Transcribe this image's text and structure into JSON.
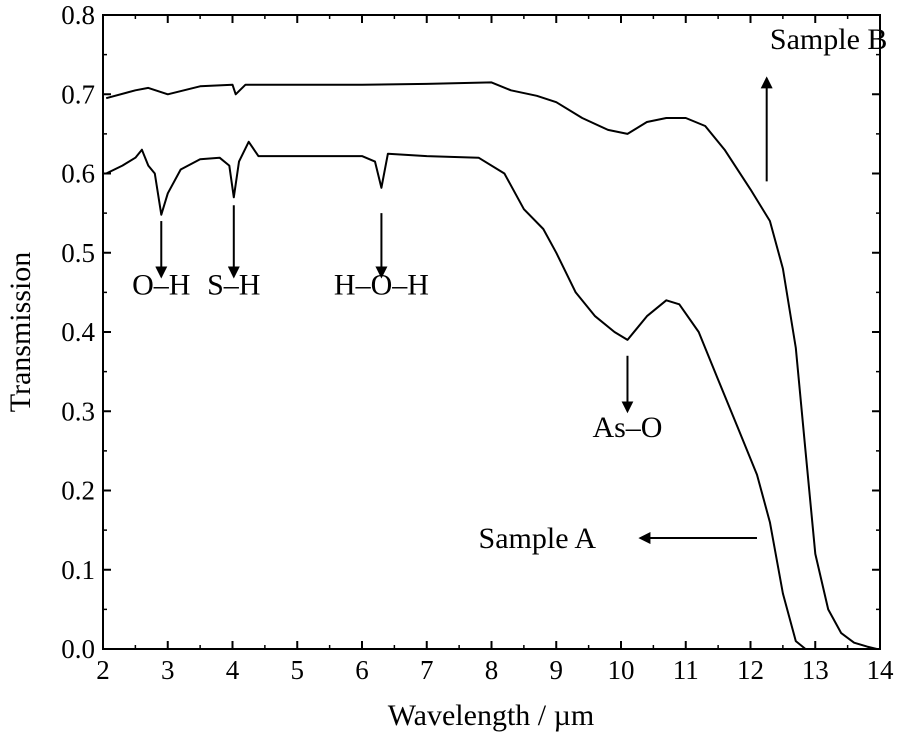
{
  "chart_data": {
    "type": "line",
    "xlabel": "Wavelength / µm",
    "ylabel": "Transmission",
    "xlim": [
      2,
      14
    ],
    "ylim": [
      0,
      0.8
    ],
    "x_ticks": [
      "2",
      "3",
      "4",
      "5",
      "6",
      "7",
      "8",
      "9",
      "10",
      "11",
      "12",
      "13",
      "14"
    ],
    "y_ticks": [
      "0.0",
      "0.1",
      "0.2",
      "0.3",
      "0.4",
      "0.5",
      "0.6",
      "0.7",
      "0.8"
    ],
    "grid": false,
    "series": [
      {
        "name": "Sample A",
        "x": [
          2.05,
          2.3,
          2.5,
          2.6,
          2.7,
          2.8,
          2.9,
          3.0,
          3.2,
          3.5,
          3.8,
          3.95,
          4.02,
          4.1,
          4.25,
          4.4,
          5.0,
          6.0,
          6.2,
          6.3,
          6.4,
          7.0,
          7.8,
          8.2,
          8.5,
          8.8,
          9.0,
          9.3,
          9.6,
          9.9,
          10.1,
          10.4,
          10.7,
          10.9,
          11.2,
          11.5,
          11.8,
          12.1,
          12.3,
          12.5,
          12.7,
          12.85,
          13.0
        ],
        "y": [
          0.6,
          0.61,
          0.62,
          0.63,
          0.61,
          0.6,
          0.548,
          0.575,
          0.605,
          0.618,
          0.62,
          0.61,
          0.57,
          0.615,
          0.64,
          0.622,
          0.622,
          0.622,
          0.615,
          0.582,
          0.625,
          0.622,
          0.62,
          0.6,
          0.555,
          0.53,
          0.5,
          0.45,
          0.42,
          0.4,
          0.39,
          0.42,
          0.44,
          0.435,
          0.4,
          0.34,
          0.28,
          0.22,
          0.16,
          0.07,
          0.01,
          0.0,
          0.0
        ]
      },
      {
        "name": "Sample B",
        "x": [
          2.05,
          2.5,
          2.7,
          3.0,
          3.5,
          4.0,
          4.05,
          4.2,
          5.0,
          6.0,
          7.0,
          8.0,
          8.3,
          8.7,
          9.0,
          9.4,
          9.8,
          10.1,
          10.4,
          10.7,
          11.0,
          11.3,
          11.6,
          12.0,
          12.3,
          12.5,
          12.7,
          12.85,
          13.0,
          13.2,
          13.4,
          13.6,
          13.8,
          13.95
        ],
        "y": [
          0.695,
          0.705,
          0.708,
          0.7,
          0.71,
          0.712,
          0.7,
          0.712,
          0.712,
          0.712,
          0.713,
          0.715,
          0.705,
          0.698,
          0.69,
          0.67,
          0.655,
          0.65,
          0.665,
          0.67,
          0.67,
          0.66,
          0.63,
          0.58,
          0.54,
          0.48,
          0.38,
          0.25,
          0.12,
          0.05,
          0.02,
          0.008,
          0.003,
          0.0
        ]
      }
    ],
    "annotations": [
      {
        "text": "O–H",
        "x": 2.9,
        "y": 0.46,
        "arrow_from": [
          2.9,
          0.54
        ],
        "arrow_to": [
          2.9,
          0.47
        ]
      },
      {
        "text": "S–H",
        "x": 4.02,
        "y": 0.46,
        "arrow_from": [
          4.02,
          0.56
        ],
        "arrow_to": [
          4.02,
          0.47
        ]
      },
      {
        "text": "H–O–H",
        "x": 6.3,
        "y": 0.46,
        "arrow_from": [
          6.3,
          0.55
        ],
        "arrow_to": [
          6.3,
          0.47
        ]
      },
      {
        "text": "As–O",
        "x": 10.1,
        "y": 0.28,
        "arrow_from": [
          10.1,
          0.37
        ],
        "arrow_to": [
          10.1,
          0.3
        ]
      },
      {
        "text": "Sample A",
        "x": 7.8,
        "y": 0.14,
        "arrow_from": [
          12.1,
          0.14
        ],
        "arrow_to": [
          10.3,
          0.14
        ]
      },
      {
        "text": "Sample B",
        "x": 12.3,
        "y": 0.77,
        "arrow_from": [
          12.25,
          0.59
        ],
        "arrow_to": [
          12.25,
          0.72
        ]
      }
    ]
  }
}
